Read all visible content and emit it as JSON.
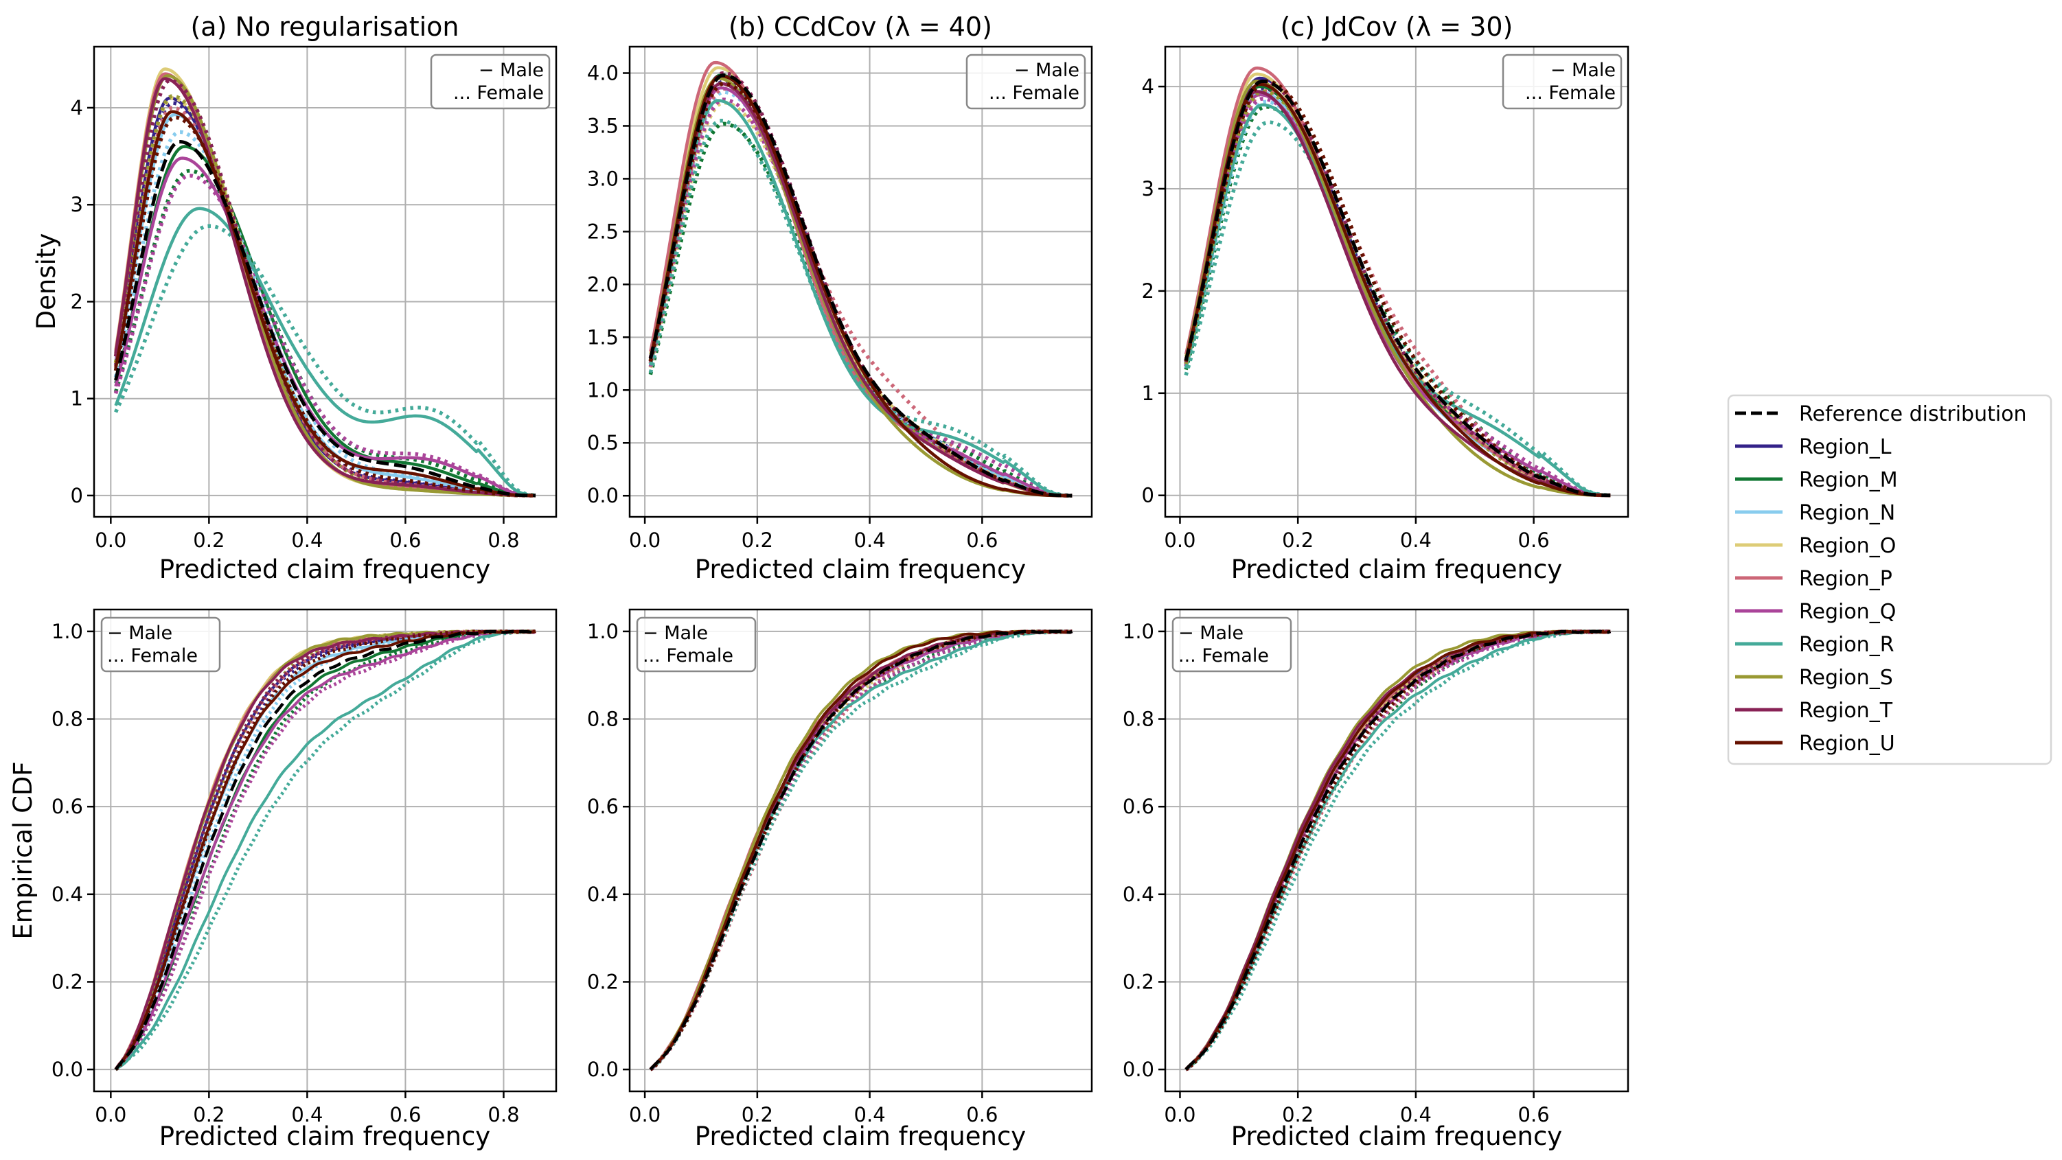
{
  "chart_data": {
    "type": "line",
    "figure_legend": {
      "placement": "right",
      "entries": [
        {
          "label": "Reference distribution",
          "color": "#000000",
          "style": "dashed"
        },
        {
          "label": "Region_L",
          "color": "#332288",
          "style": "solid"
        },
        {
          "label": "Region_M",
          "color": "#117733",
          "style": "solid"
        },
        {
          "label": "Region_N",
          "color": "#88CCEE",
          "style": "solid"
        },
        {
          "label": "Region_O",
          "color": "#DDCC77",
          "style": "solid"
        },
        {
          "label": "Region_P",
          "color": "#CC6677",
          "style": "solid"
        },
        {
          "label": "Region_Q",
          "color": "#AA4499",
          "style": "solid"
        },
        {
          "label": "Region_R",
          "color": "#44AA99",
          "style": "solid"
        },
        {
          "label": "Region_S",
          "color": "#999933",
          "style": "solid"
        },
        {
          "label": "Region_T",
          "color": "#882255",
          "style": "solid"
        },
        {
          "label": "Region_U",
          "color": "#661100",
          "style": "solid"
        }
      ]
    },
    "gender_legend": {
      "male_marker": "−",
      "male_label": "Male",
      "female_marker": "...",
      "female_label": "Female"
    },
    "panels": [
      {
        "id": "a",
        "title": "(a) No regularisation",
        "xlabel": "Predicted claim frequency",
        "density": {
          "ylabel": "Density",
          "xlim": [
            -0.034,
            0.907
          ],
          "ylim": [
            -0.22,
            4.63
          ],
          "xticks": [
            "0.0",
            "0.2",
            "0.4",
            "0.6",
            "0.8"
          ],
          "xtick_values": [
            0,
            0.2,
            0.4,
            0.6,
            0.8
          ],
          "yticks": [
            "0",
            "1",
            "2",
            "3",
            "4"
          ],
          "ytick_values": [
            0,
            1,
            2,
            3,
            4
          ],
          "gender_legend_placement": "top-right",
          "x_range": [
            0.01,
            0.865
          ]
        },
        "cdf": {
          "ylabel": "Empirical CDF",
          "xlim": [
            -0.034,
            0.907
          ],
          "ylim": [
            -0.05,
            1.05
          ],
          "xticks": [
            "0.0",
            "0.2",
            "0.4",
            "0.6",
            "0.8"
          ],
          "xtick_values": [
            0,
            0.2,
            0.4,
            0.6,
            0.8
          ],
          "yticks": [
            "0.0",
            "0.2",
            "0.4",
            "0.6",
            "0.8",
            "1.0"
          ],
          "ytick_values": [
            0,
            0.2,
            0.4,
            0.6,
            0.8,
            1.0
          ],
          "gender_legend_placement": "top-left"
        },
        "series": [
          {
            "name": "Reference distribution",
            "gender": "all",
            "mode": 0.14,
            "peak": 3.65,
            "tail_center": 0.6,
            "tail_height": 0.22
          },
          {
            "name": "Region_L",
            "gender": "male",
            "mode": 0.12,
            "peak": 4.1,
            "tail_center": 0.6,
            "tail_height": 0.1
          },
          {
            "name": "Region_L",
            "gender": "female",
            "mode": 0.125,
            "peak": 4.05,
            "tail_center": 0.6,
            "tail_height": 0.1
          },
          {
            "name": "Region_M",
            "gender": "male",
            "mode": 0.15,
            "peak": 3.6,
            "tail_center": 0.62,
            "tail_height": 0.24
          },
          {
            "name": "Region_M",
            "gender": "female",
            "mode": 0.16,
            "peak": 3.35,
            "tail_center": 0.63,
            "tail_height": 0.27
          },
          {
            "name": "Region_N",
            "gender": "male",
            "mode": 0.13,
            "peak": 3.93,
            "tail_center": 0.6,
            "tail_height": 0.14
          },
          {
            "name": "Region_N",
            "gender": "female",
            "mode": 0.14,
            "peak": 3.75,
            "tail_center": 0.6,
            "tail_height": 0.15
          },
          {
            "name": "Region_O",
            "gender": "male",
            "mode": 0.11,
            "peak": 4.4,
            "tail_center": 0.6,
            "tail_height": 0.05
          },
          {
            "name": "Region_O",
            "gender": "female",
            "mode": 0.125,
            "peak": 4.1,
            "tail_center": 0.6,
            "tail_height": 0.07
          },
          {
            "name": "Region_P",
            "gender": "male",
            "mode": 0.11,
            "peak": 4.35,
            "tail_center": 0.6,
            "tail_height": 0.07
          },
          {
            "name": "Region_P",
            "gender": "female",
            "mode": 0.125,
            "peak": 4.0,
            "tail_center": 0.6,
            "tail_height": 0.08
          },
          {
            "name": "Region_Q",
            "gender": "male",
            "mode": 0.145,
            "peak": 3.48,
            "tail_center": 0.64,
            "tail_height": 0.3
          },
          {
            "name": "Region_Q",
            "gender": "female",
            "mode": 0.16,
            "peak": 3.3,
            "tail_center": 0.64,
            "tail_height": 0.32
          },
          {
            "name": "Region_R",
            "gender": "male",
            "mode": 0.18,
            "peak": 2.96,
            "tail_center": 0.65,
            "tail_height": 0.63
          },
          {
            "name": "Region_R",
            "gender": "female",
            "mode": 0.2,
            "peak": 2.78,
            "tail_center": 0.66,
            "tail_height": 0.68
          },
          {
            "name": "Region_S",
            "gender": "male",
            "mode": 0.115,
            "peak": 4.33,
            "tail_center": 0.6,
            "tail_height": 0.04
          },
          {
            "name": "Region_S",
            "gender": "female",
            "mode": 0.125,
            "peak": 4.12,
            "tail_center": 0.6,
            "tail_height": 0.05
          },
          {
            "name": "Region_T",
            "gender": "male",
            "mode": 0.11,
            "peak": 4.3,
            "tail_center": 0.6,
            "tail_height": 0.08
          },
          {
            "name": "Region_T",
            "gender": "female",
            "mode": 0.12,
            "peak": 4.28,
            "tail_center": 0.6,
            "tail_height": 0.09
          },
          {
            "name": "Region_U",
            "gender": "male",
            "mode": 0.125,
            "peak": 3.96,
            "tail_center": 0.6,
            "tail_height": 0.18
          },
          {
            "name": "Region_U",
            "gender": "female",
            "mode": 0.13,
            "peak": 3.9,
            "tail_center": 0.6,
            "tail_height": 0.11
          }
        ]
      },
      {
        "id": "b",
        "title": "(b) CCdCov (λ = 40)",
        "xlabel": "Predicted claim frequency",
        "density": {
          "ylabel": "",
          "xlim": [
            -0.027,
            0.795
          ],
          "ylim": [
            -0.2,
            4.25
          ],
          "xticks": [
            "0.0",
            "0.2",
            "0.4",
            "0.6"
          ],
          "xtick_values": [
            0,
            0.2,
            0.4,
            0.6
          ],
          "yticks": [
            "0.0",
            "0.5",
            "1.0",
            "1.5",
            "2.0",
            "2.5",
            "3.0",
            "3.5",
            "4.0"
          ],
          "ytick_values": [
            0,
            0.5,
            1,
            1.5,
            2,
            2.5,
            3,
            3.5,
            4
          ],
          "gender_legend_placement": "top-right",
          "x_range": [
            0.01,
            0.76
          ]
        },
        "cdf": {
          "ylabel": "",
          "xlim": [
            -0.027,
            0.795
          ],
          "ylim": [
            -0.05,
            1.05
          ],
          "xticks": [
            "0.0",
            "0.2",
            "0.4",
            "0.6"
          ],
          "xtick_values": [
            0,
            0.2,
            0.4,
            0.6
          ],
          "yticks": [
            "0.0",
            "0.2",
            "0.4",
            "0.6",
            "0.8",
            "1.0"
          ],
          "ytick_values": [
            0,
            0.2,
            0.4,
            0.6,
            0.8,
            1.0
          ],
          "gender_legend_placement": "top-left"
        },
        "series": [
          {
            "name": "Reference distribution",
            "gender": "all",
            "mode": 0.14,
            "peak": 3.98,
            "tail_center": 0.5,
            "tail_height": 0.3
          },
          {
            "name": "Region_L",
            "gender": "male",
            "mode": 0.135,
            "peak": 3.98,
            "tail_center": 0.5,
            "tail_height": 0.28
          },
          {
            "name": "Region_L",
            "gender": "female",
            "mode": 0.14,
            "peak": 3.92,
            "tail_center": 0.52,
            "tail_height": 0.3
          },
          {
            "name": "Region_M",
            "gender": "male",
            "mode": 0.135,
            "peak": 3.98,
            "tail_center": 0.52,
            "tail_height": 0.3
          },
          {
            "name": "Region_M",
            "gender": "female",
            "mode": 0.14,
            "peak": 3.52,
            "tail_center": 0.53,
            "tail_height": 0.34
          },
          {
            "name": "Region_N",
            "gender": "male",
            "mode": 0.135,
            "peak": 3.9,
            "tail_center": 0.52,
            "tail_height": 0.28
          },
          {
            "name": "Region_N",
            "gender": "female",
            "mode": 0.14,
            "peak": 3.82,
            "tail_center": 0.52,
            "tail_height": 0.3
          },
          {
            "name": "Region_O",
            "gender": "male",
            "mode": 0.13,
            "peak": 4.05,
            "tail_center": 0.48,
            "tail_height": 0.35
          },
          {
            "name": "Region_O",
            "gender": "female",
            "mode": 0.14,
            "peak": 3.72,
            "tail_center": 0.5,
            "tail_height": 0.32
          },
          {
            "name": "Region_P",
            "gender": "male",
            "mode": 0.125,
            "peak": 4.1,
            "tail_center": 0.5,
            "tail_height": 0.3
          },
          {
            "name": "Region_P",
            "gender": "female",
            "mode": 0.14,
            "peak": 3.85,
            "tail_center": 0.47,
            "tail_height": 0.45
          },
          {
            "name": "Region_Q",
            "gender": "male",
            "mode": 0.135,
            "peak": 3.86,
            "tail_center": 0.53,
            "tail_height": 0.3
          },
          {
            "name": "Region_Q",
            "gender": "female",
            "mode": 0.14,
            "peak": 3.75,
            "tail_center": 0.55,
            "tail_height": 0.34
          },
          {
            "name": "Region_R",
            "gender": "male",
            "mode": 0.13,
            "peak": 3.74,
            "tail_center": 0.55,
            "tail_height": 0.4
          },
          {
            "name": "Region_R",
            "gender": "female",
            "mode": 0.135,
            "peak": 3.55,
            "tail_center": 0.55,
            "tail_height": 0.46
          },
          {
            "name": "Region_S",
            "gender": "male",
            "mode": 0.13,
            "peak": 3.95,
            "tail_center": 0.45,
            "tail_height": 0.22
          },
          {
            "name": "Region_S",
            "gender": "female",
            "mode": 0.135,
            "peak": 3.9,
            "tail_center": 0.5,
            "tail_height": 0.28
          },
          {
            "name": "Region_T",
            "gender": "male",
            "mode": 0.135,
            "peak": 3.9,
            "tail_center": 0.5,
            "tail_height": 0.26
          },
          {
            "name": "Region_T",
            "gender": "female",
            "mode": 0.14,
            "peak": 4.0,
            "tail_center": 0.5,
            "tail_height": 0.28
          },
          {
            "name": "Region_U",
            "gender": "male",
            "mode": 0.135,
            "peak": 3.97,
            "tail_center": 0.45,
            "tail_height": 0.25
          },
          {
            "name": "Region_U",
            "gender": "female",
            "mode": 0.14,
            "peak": 3.9,
            "tail_center": 0.5,
            "tail_height": 0.3
          }
        ]
      },
      {
        "id": "c",
        "title": "(c) JdCov (λ = 30)",
        "xlabel": "Predicted claim frequency",
        "density": {
          "ylabel": "",
          "xlim": [
            -0.025,
            0.76
          ],
          "ylim": [
            -0.21,
            4.39
          ],
          "xticks": [
            "0.0",
            "0.2",
            "0.4",
            "0.6"
          ],
          "xtick_values": [
            0,
            0.2,
            0.4,
            0.6
          ],
          "yticks": [
            "0",
            "1",
            "2",
            "3",
            "4"
          ],
          "ytick_values": [
            0,
            1,
            2,
            3,
            4
          ],
          "gender_legend_placement": "top-right",
          "x_range": [
            0.01,
            0.73
          ]
        },
        "cdf": {
          "ylabel": "",
          "xlim": [
            -0.025,
            0.76
          ],
          "ylim": [
            -0.05,
            1.05
          ],
          "xticks": [
            "0.0",
            "0.2",
            "0.4",
            "0.6"
          ],
          "xtick_values": [
            0,
            0.2,
            0.4,
            0.6
          ],
          "yticks": [
            "0.0",
            "0.2",
            "0.4",
            "0.6",
            "0.8",
            "1.0"
          ],
          "ytick_values": [
            0,
            0.2,
            0.4,
            0.6,
            0.8,
            1.0
          ],
          "gender_legend_placement": "top-left"
        },
        "series": [
          {
            "name": "Reference distribution",
            "gender": "all",
            "mode": 0.14,
            "peak": 4.05,
            "tail_center": 0.47,
            "tail_height": 0.35
          },
          {
            "name": "Region_L",
            "gender": "male",
            "mode": 0.135,
            "peak": 4.08,
            "tail_center": 0.47,
            "tail_height": 0.32
          },
          {
            "name": "Region_L",
            "gender": "female",
            "mode": 0.14,
            "peak": 3.98,
            "tail_center": 0.48,
            "tail_height": 0.33
          },
          {
            "name": "Region_M",
            "gender": "male",
            "mode": 0.135,
            "peak": 4.0,
            "tail_center": 0.47,
            "tail_height": 0.34
          },
          {
            "name": "Region_M",
            "gender": "female",
            "mode": 0.145,
            "peak": 3.8,
            "tail_center": 0.47,
            "tail_height": 0.42
          },
          {
            "name": "Region_N",
            "gender": "male",
            "mode": 0.135,
            "peak": 3.95,
            "tail_center": 0.48,
            "tail_height": 0.3
          },
          {
            "name": "Region_N",
            "gender": "female",
            "mode": 0.145,
            "peak": 3.85,
            "tail_center": 0.48,
            "tail_height": 0.33
          },
          {
            "name": "Region_O",
            "gender": "male",
            "mode": 0.13,
            "peak": 4.12,
            "tail_center": 0.45,
            "tail_height": 0.4
          },
          {
            "name": "Region_O",
            "gender": "female",
            "mode": 0.14,
            "peak": 3.95,
            "tail_center": 0.47,
            "tail_height": 0.38
          },
          {
            "name": "Region_P",
            "gender": "male",
            "mode": 0.13,
            "peak": 4.18,
            "tail_center": 0.47,
            "tail_height": 0.34
          },
          {
            "name": "Region_P",
            "gender": "female",
            "mode": 0.145,
            "peak": 3.95,
            "tail_center": 0.45,
            "tail_height": 0.45
          },
          {
            "name": "Region_Q",
            "gender": "male",
            "mode": 0.135,
            "peak": 3.92,
            "tail_center": 0.5,
            "tail_height": 0.34
          },
          {
            "name": "Region_Q",
            "gender": "female",
            "mode": 0.14,
            "peak": 3.88,
            "tail_center": 0.5,
            "tail_height": 0.38
          },
          {
            "name": "Region_R",
            "gender": "male",
            "mode": 0.14,
            "peak": 3.82,
            "tail_center": 0.52,
            "tail_height": 0.46
          },
          {
            "name": "Region_R",
            "gender": "female",
            "mode": 0.15,
            "peak": 3.65,
            "tail_center": 0.52,
            "tail_height": 0.5
          },
          {
            "name": "Region_S",
            "gender": "male",
            "mode": 0.13,
            "peak": 4.05,
            "tail_center": 0.43,
            "tail_height": 0.26
          },
          {
            "name": "Region_S",
            "gender": "female",
            "mode": 0.14,
            "peak": 3.95,
            "tail_center": 0.46,
            "tail_height": 0.32
          },
          {
            "name": "Region_T",
            "gender": "male",
            "mode": 0.13,
            "peak": 3.95,
            "tail_center": 0.47,
            "tail_height": 0.27
          },
          {
            "name": "Region_T",
            "gender": "female",
            "mode": 0.14,
            "peak": 4.05,
            "tail_center": 0.47,
            "tail_height": 0.32
          },
          {
            "name": "Region_U",
            "gender": "male",
            "mode": 0.135,
            "peak": 4.02,
            "tail_center": 0.45,
            "tail_height": 0.3
          },
          {
            "name": "Region_U",
            "gender": "female",
            "mode": 0.145,
            "peak": 4.05,
            "tail_center": 0.47,
            "tail_height": 0.36
          }
        ]
      }
    ]
  }
}
